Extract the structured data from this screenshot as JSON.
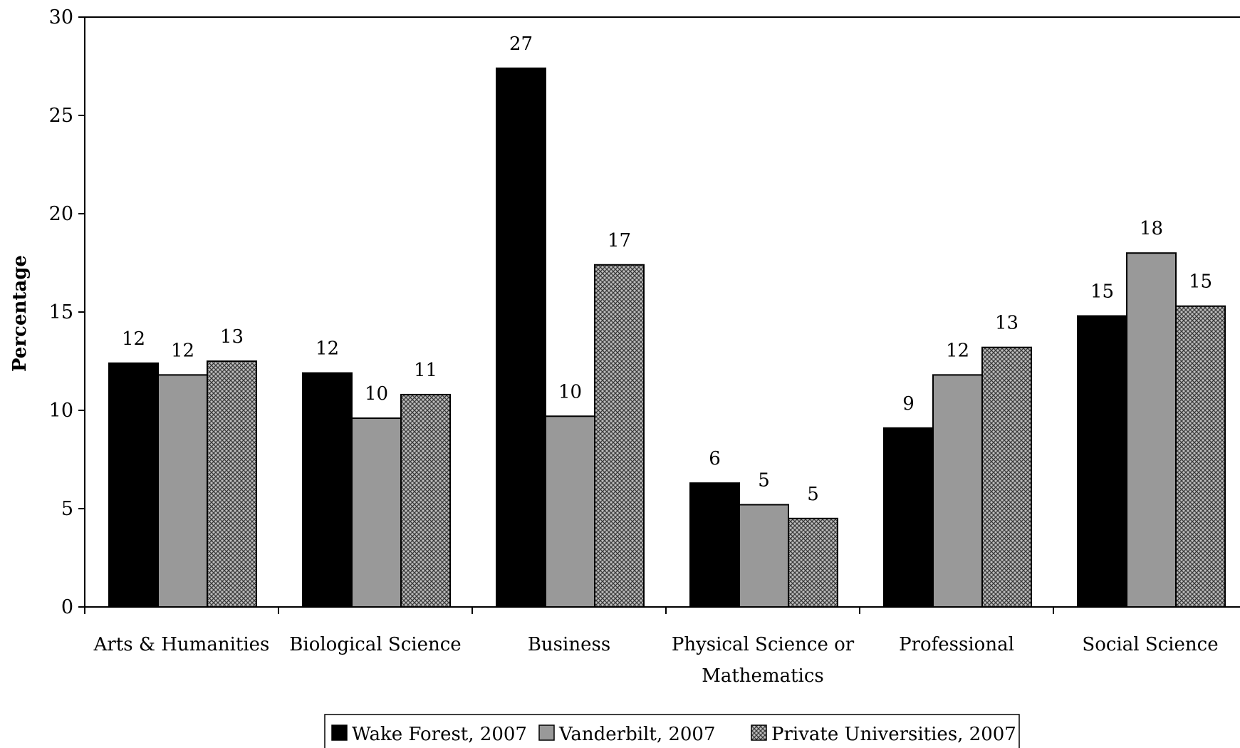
{
  "chart_data": {
    "type": "bar",
    "title": "",
    "xlabel": "",
    "ylabel": "Percentage",
    "ylim": [
      0,
      30
    ],
    "yticks": [
      0,
      5,
      10,
      15,
      20,
      25,
      30
    ],
    "grid": false,
    "legend_position": "bottom",
    "categories": [
      [
        "Arts & Humanities"
      ],
      [
        "Biological Science"
      ],
      [
        "Business"
      ],
      [
        "Physical Science or",
        "Mathematics"
      ],
      [
        "Professional"
      ],
      [
        "Social Science"
      ]
    ],
    "series": [
      {
        "name": "Wake Forest, 2007",
        "fill": "solid-black",
        "values": [
          12.4,
          11.9,
          27.4,
          6.3,
          9.1,
          14.8
        ],
        "labels": [
          "12",
          "12",
          "27",
          "6",
          "9",
          "15"
        ]
      },
      {
        "name": "Vanderbilt, 2007",
        "fill": "solid-gray",
        "values": [
          11.8,
          9.6,
          9.7,
          5.2,
          11.8,
          18.0
        ],
        "labels": [
          "12",
          "10",
          "10",
          "5",
          "12",
          "18"
        ]
      },
      {
        "name": "Private Universities, 2007",
        "fill": "crosshatch",
        "values": [
          12.5,
          10.8,
          17.4,
          4.5,
          13.2,
          15.3
        ],
        "labels": [
          "13",
          "11",
          "17",
          "5",
          "13",
          "15"
        ]
      }
    ],
    "colors": {
      "black": "#000000",
      "gray": "#999999",
      "hatch_bg": "#bdbdbd",
      "hatch_line": "#444444",
      "axis": "#000000"
    }
  }
}
